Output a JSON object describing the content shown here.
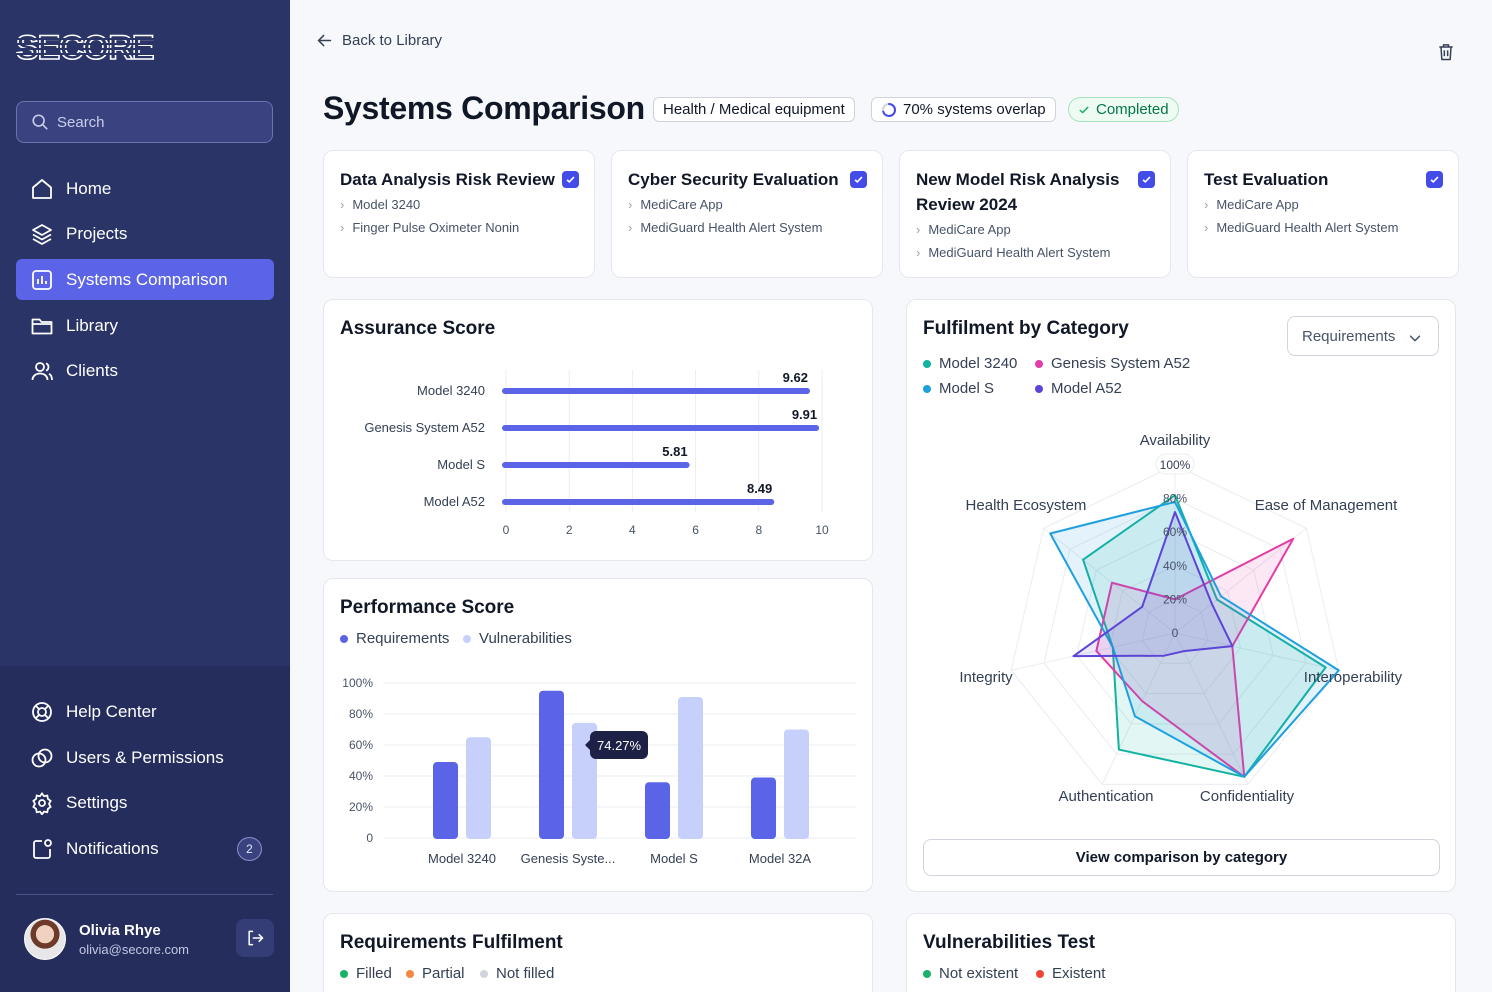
{
  "brand": {
    "logo_text": "SECORE"
  },
  "search": {
    "placeholder": "Search"
  },
  "nav": {
    "home": "Home",
    "projects": "Projects",
    "systems_comparison": "Systems Comparison",
    "library": "Library",
    "clients": "Clients",
    "help_center": "Help Center",
    "users_permissions": "Users & Permissions",
    "settings": "Settings",
    "notifications": "Notifications",
    "notifications_count": "2"
  },
  "user": {
    "name": "Olivia Rhye",
    "email": "olivia@secore.com"
  },
  "header": {
    "back_label": "Back to Library",
    "title": "Systems Comparison",
    "category_chip": "Health / Medical equipment",
    "overlap_chip": "70% systems overlap",
    "overlap_value": 70,
    "status_chip": "Completed"
  },
  "evaluations": [
    {
      "title": "Data Analysis Risk Review",
      "checked": true,
      "items": [
        "Model 3240",
        "Finger Pulse Oximeter Nonin"
      ]
    },
    {
      "title": "Cyber Security Evaluation",
      "checked": true,
      "items": [
        "MediCare App",
        "MediGuard Health Alert System"
      ]
    },
    {
      "title_line1": "New Model Risk Analysis",
      "title_line2": "Review 2024",
      "checked": true,
      "items": [
        "MediCare App",
        "MediGuard Health Alert System"
      ]
    },
    {
      "title": "Test Evaluation",
      "checked": true,
      "items": [
        "MediCare App",
        "MediGuard Health Alert System"
      ]
    }
  ],
  "assurance": {
    "title": "Assurance Score"
  },
  "performance": {
    "title": "Performance Score",
    "legend": [
      "Requirements",
      "Vulnerabilities"
    ],
    "tooltip": "74.27%"
  },
  "fulfilment": {
    "title": "Fulfilment by Category",
    "dropdown_value": "Requirements",
    "legend": [
      "Model 3240",
      "Genesis System A52",
      "Model S",
      "Model A52"
    ],
    "button_label": "View comparison by category"
  },
  "requirements_fulfilment": {
    "title": "Requirements Fulfilment",
    "legend": [
      "Filled",
      "Partial",
      "Not filled"
    ]
  },
  "vulnerabilities_test": {
    "title": "Vulnerabilities Test",
    "legend": [
      "Not existent",
      "Existent"
    ]
  },
  "colors": {
    "primary": "#5b63e6",
    "primary_light": "#c7d0fb",
    "teal": "#12b3a0",
    "pink": "#e33ca5",
    "blue": "#1ea0e0",
    "purple": "#5a45d8",
    "green": "#17b26a",
    "orange": "#f38744",
    "gray": "#d0d5dd",
    "red": "#f04438"
  },
  "chart_data": [
    {
      "type": "bar",
      "orientation": "horizontal",
      "title": "Assurance Score",
      "categories": [
        "Model 3240",
        "Genesis System A52",
        "Model S",
        "Model A52"
      ],
      "values": [
        9.62,
        9.91,
        5.81,
        8.49
      ],
      "value_labels": [
        "9.62",
        "9.91",
        "5.81",
        "8.49"
      ],
      "xlim": [
        0,
        10
      ],
      "xticks": [
        "0",
        "2",
        "4",
        "6",
        "8",
        "10"
      ]
    },
    {
      "type": "bar",
      "title": "Performance Score",
      "categories": [
        "Model 3240",
        "Genesis Syste...",
        "Model S",
        "Model 32A"
      ],
      "series": [
        {
          "name": "Requirements",
          "values": [
            49,
            95,
            36,
            39
          ]
        },
        {
          "name": "Vulnerabilities",
          "values": [
            65,
            74.27,
            91,
            70
          ]
        }
      ],
      "ylim": [
        0,
        100
      ],
      "yticks": [
        "0",
        "20%",
        "40%",
        "60%",
        "80%",
        "100%"
      ]
    },
    {
      "type": "radar",
      "title": "Fulfilment by Category",
      "axes": [
        "Availability",
        "Ease of Management",
        "Interoperability",
        "Confidentiality",
        "Authentication",
        "Integrity",
        "Health Ecosystem"
      ],
      "rings": [
        "0",
        "20%",
        "40%",
        "60%",
        "80%",
        "100%"
      ],
      "series": [
        {
          "name": "Model 3240",
          "values": [
            82,
            32,
            92,
            95,
            77,
            38,
            70
          ]
        },
        {
          "name": "Genesis System A52",
          "values": [
            20,
            90,
            35,
            95,
            45,
            48,
            48
          ]
        },
        {
          "name": "Model S",
          "values": [
            78,
            35,
            100,
            95,
            55,
            38,
            95
          ]
        },
        {
          "name": "Model A52",
          "values": [
            72,
            28,
            35,
            12,
            15,
            62,
            25
          ]
        }
      ]
    }
  ]
}
